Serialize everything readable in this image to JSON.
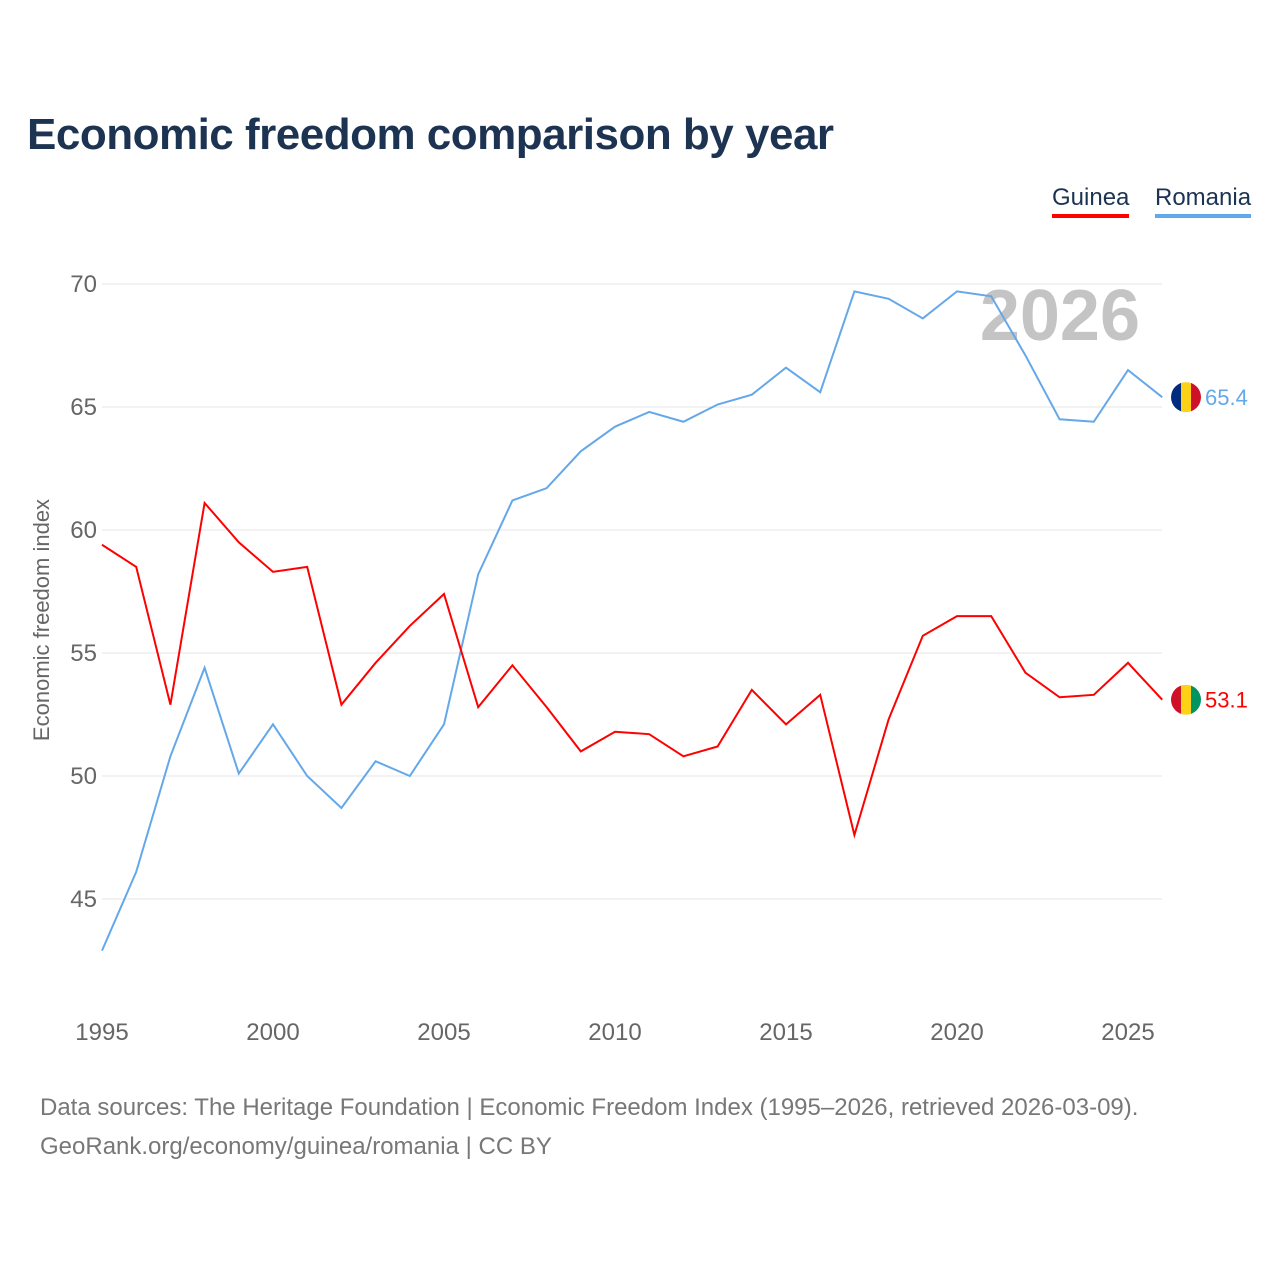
{
  "chart_data": {
    "type": "line",
    "title": "Economic freedom comparison by year",
    "xlabel": "",
    "ylabel": "Economic freedom index",
    "year_watermark": "2026",
    "xlim": [
      1995,
      2026
    ],
    "ylim": [
      42,
      70
    ],
    "xticks": [
      1995,
      2000,
      2005,
      2010,
      2015,
      2020,
      2025
    ],
    "yticks": [
      45,
      50,
      55,
      60,
      65,
      70
    ],
    "grid": true,
    "legend_placement": "top-right",
    "x": [
      1995,
      1996,
      1997,
      1998,
      1999,
      2000,
      2001,
      2002,
      2003,
      2004,
      2005,
      2006,
      2007,
      2008,
      2009,
      2010,
      2011,
      2012,
      2013,
      2014,
      2015,
      2016,
      2017,
      2018,
      2019,
      2020,
      2021,
      2022,
      2023,
      2024,
      2025,
      2026
    ],
    "series": [
      {
        "name": "Guinea",
        "color": "#ff0000",
        "end_label": "53.1",
        "values": [
          59.4,
          58.5,
          52.9,
          61.1,
          59.5,
          58.3,
          58.5,
          52.9,
          54.6,
          56.1,
          57.4,
          52.8,
          54.5,
          52.8,
          51.0,
          51.8,
          51.7,
          50.8,
          51.2,
          53.5,
          52.1,
          53.3,
          47.6,
          52.3,
          55.7,
          56.5,
          56.5,
          54.2,
          53.2,
          53.3,
          54.6,
          53.1
        ]
      },
      {
        "name": "Romania",
        "color": "#64a8ea",
        "end_label": "65.4",
        "values": [
          42.9,
          46.1,
          50.8,
          54.4,
          50.1,
          52.1,
          50.0,
          48.7,
          50.6,
          50.0,
          52.1,
          58.2,
          61.2,
          61.7,
          63.2,
          64.2,
          64.8,
          64.4,
          65.1,
          65.5,
          66.6,
          65.6,
          69.7,
          69.4,
          68.6,
          69.7,
          69.5,
          67.1,
          64.5,
          64.4,
          66.5,
          65.4
        ]
      }
    ]
  },
  "source": {
    "line1": "Data sources: The Heritage Foundation | Economic Freedom Index (1995–2026, retrieved 2026-03-09).",
    "line2": "GeoRank.org/economy/guinea/romania | CC BY"
  }
}
